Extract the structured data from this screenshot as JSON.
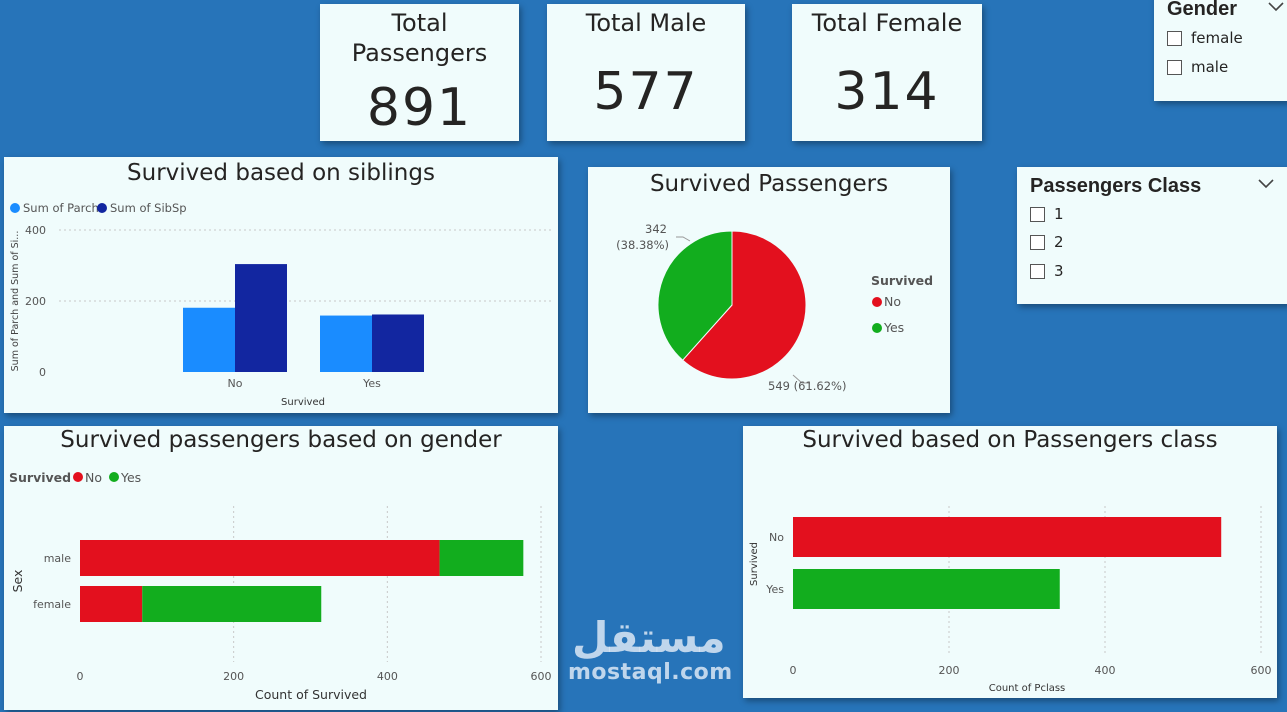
{
  "kpis": {
    "total_passengers": {
      "title_line1": "Total",
      "title_line2": "Passengers",
      "value": "891"
    },
    "total_male": {
      "title": "Total Male",
      "value": "577"
    },
    "total_female": {
      "title": "Total Female",
      "value": "314"
    }
  },
  "gender_slicer": {
    "title": "Gender",
    "options": [
      "female",
      "male"
    ],
    "icon": "chevron-down-icon"
  },
  "class_slicer": {
    "title": "Passengers Class",
    "options": [
      "1",
      "2",
      "3"
    ],
    "icon": "chevron-down-icon"
  },
  "siblings_chart": {
    "title": "Survived based on siblings"
  },
  "survived_pie": {
    "title": "Survived Passengers"
  },
  "gender_chart": {
    "title": "Survived passengers based on gender"
  },
  "class_chart": {
    "title": "Survived based on Passengers class"
  },
  "watermark": {
    "arabic": "مستقل",
    "latin": "mostaql.com"
  },
  "colors": {
    "no": "#e3101e",
    "yes": "#12ad1e",
    "parch": "#1a8cff",
    "sibsp": "#1226a0",
    "background": "#2774b9",
    "card": "#f0fcfc"
  },
  "chart_data": [
    {
      "id": "siblings",
      "type": "bar",
      "title": "Survived based on siblings",
      "categories": [
        "No",
        "Yes"
      ],
      "series": [
        {
          "name": "Sum of Parch",
          "values": [
            181,
            159
          ]
        },
        {
          "name": "Sum of SibSp",
          "values": [
            304,
            162
          ]
        }
      ],
      "xlabel": "Survived",
      "ylabel": "Sum of Parch and Sum of Si...",
      "ylim": [
        0,
        400
      ],
      "yticks": [
        "0",
        "200",
        "400"
      ],
      "legend": "top-left",
      "grid": true
    },
    {
      "id": "pie",
      "type": "pie",
      "title": "Survived Passengers",
      "legend_title": "Survived",
      "legend": "right",
      "slices": [
        {
          "label": "No",
          "value": 549,
          "percent": "61.62%",
          "data_label": "549 (61.62%)"
        },
        {
          "label": "Yes",
          "value": 342,
          "percent": "38.38%",
          "data_label_value": "342",
          "data_label_pct": "(38.38%)"
        }
      ]
    },
    {
      "id": "gender",
      "type": "bar",
      "orientation": "horizontal",
      "stacked": true,
      "title": "Survived passengers based on gender",
      "categories": [
        "male",
        "female"
      ],
      "series": [
        {
          "name": "No",
          "values": [
            468,
            81
          ]
        },
        {
          "name": "Yes",
          "values": [
            109,
            233
          ]
        }
      ],
      "legend_title": "Survived",
      "legend": "top-left",
      "xlabel": "Count of Survived",
      "ylabel": "Sex",
      "xlim": [
        0,
        600
      ],
      "xticks": [
        "0",
        "200",
        "400",
        "600"
      ],
      "grid": true
    },
    {
      "id": "class",
      "type": "bar",
      "orientation": "horizontal",
      "title": "Survived based on Passengers class",
      "categories": [
        "No",
        "Yes"
      ],
      "values": [
        549,
        342
      ],
      "xlabel": "Count of Pclass",
      "ylabel": "Survived",
      "xlim": [
        0,
        600
      ],
      "xticks": [
        "0",
        "200",
        "400",
        "600"
      ],
      "grid": true
    }
  ]
}
